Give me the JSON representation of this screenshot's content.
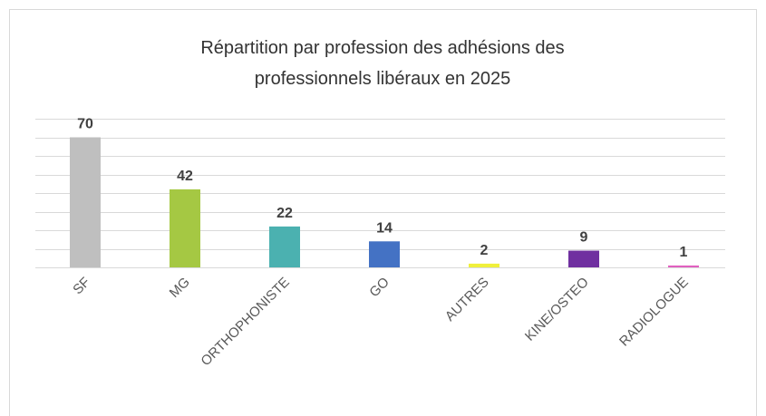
{
  "chart_data": {
    "type": "bar",
    "title": "Répartition par profession des adhésions des professionnels libéraux en 2025",
    "categories": [
      "SF",
      "MG",
      "ORTHOPHONISTE",
      "GO",
      "AUTRES",
      "KINE/OSTEO",
      "RADIOLOGUE"
    ],
    "values": [
      70,
      42,
      22,
      14,
      2,
      9,
      1
    ],
    "colors": [
      "#bfbfbf",
      "#a5c843",
      "#4bb1b0",
      "#4472c4",
      "#f0f03c",
      "#7030a0",
      "#e060c0"
    ],
    "ylim": [
      0,
      80
    ],
    "yticks": [
      0,
      10,
      20,
      30,
      40,
      50,
      60,
      70,
      80
    ],
    "grid": true
  }
}
